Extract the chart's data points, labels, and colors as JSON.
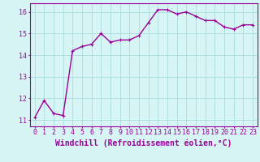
{
  "x": [
    0,
    1,
    2,
    3,
    4,
    5,
    6,
    7,
    8,
    9,
    10,
    11,
    12,
    13,
    14,
    15,
    16,
    17,
    18,
    19,
    20,
    21,
    22,
    23
  ],
  "y": [
    11.1,
    11.9,
    11.3,
    11.2,
    14.2,
    14.4,
    14.5,
    15.0,
    14.6,
    14.7,
    14.7,
    14.9,
    15.5,
    16.1,
    16.1,
    15.9,
    16.0,
    15.8,
    15.6,
    15.6,
    15.3,
    15.2,
    15.4,
    15.4
  ],
  "line_color": "#990099",
  "marker": "+",
  "marker_size": 3,
  "bg_color": "#d8f5f5",
  "grid_color": "#aadddd",
  "tick_color": "#990099",
  "label_color": "#990099",
  "xlabel": "Windchill (Refroidissement éolien,°C)",
  "yticks": [
    11,
    12,
    13,
    14,
    15,
    16
  ],
  "xticks": [
    0,
    1,
    2,
    3,
    4,
    5,
    6,
    7,
    8,
    9,
    10,
    11,
    12,
    13,
    14,
    15,
    16,
    17,
    18,
    19,
    20,
    21,
    22,
    23
  ],
  "xlim": [
    -0.5,
    23.5
  ],
  "ylim": [
    10.7,
    16.4
  ],
  "font_size": 6,
  "xlabel_font_size": 7,
  "line_width": 1.0
}
